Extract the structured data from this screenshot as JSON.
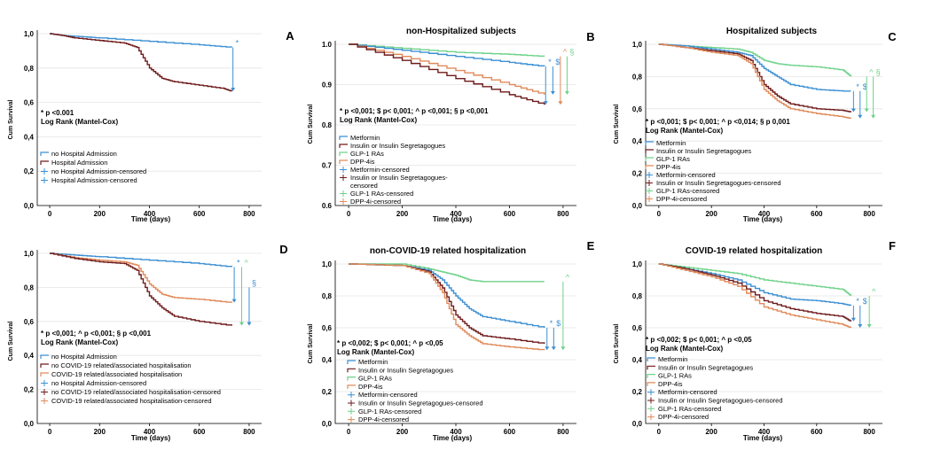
{
  "colors": {
    "blue": "#3b8fd3",
    "darkred": "#6e1a1a",
    "green": "#6fd28a",
    "orange": "#e08a5a"
  },
  "panels": [
    {
      "letter": "A",
      "title": "",
      "ylabel": "Cum Survival",
      "xlabel": "Time (days)",
      "yticks": [
        "0,0",
        "0,2",
        "0,4",
        "0,6",
        "0,8",
        "1,0"
      ],
      "xticks": [
        "0",
        "200",
        "400",
        "600",
        "800"
      ],
      "ylim": [
        0,
        1
      ],
      "xlim": [
        -50,
        850
      ],
      "stat1": "* p <0.001",
      "stat2": "Log Rank (Mantel-Cox)",
      "legend": [
        {
          "label": "no Hospital Admission",
          "color": "#3b8fd3",
          "type": "line"
        },
        {
          "label": "Hospital Admission",
          "color": "#6e1a1a",
          "type": "line"
        },
        {
          "label": "no Hospital Admission-censored",
          "color": "#3b8fd3",
          "type": "censor"
        },
        {
          "label": "Hospital Admission-censored",
          "color": "#3b8fd3",
          "type": "censor"
        }
      ],
      "series": [
        {
          "color": "#3b8fd3",
          "x": [
            0,
            50,
            100,
            200,
            400,
            600,
            730
          ],
          "y": [
            1,
            0.99,
            0.985,
            0.975,
            0.955,
            0.935,
            0.92
          ]
        },
        {
          "color": "#6e1a1a",
          "x": [
            0,
            50,
            100,
            200,
            300,
            350,
            400,
            450,
            500,
            600,
            700,
            730
          ],
          "y": [
            1,
            0.99,
            0.975,
            0.96,
            0.945,
            0.92,
            0.8,
            0.74,
            0.72,
            0.7,
            0.68,
            0.665
          ]
        }
      ],
      "markers": [
        {
          "sym": "*",
          "color": "#3b8fd3",
          "x": 735,
          "y1": 0.92,
          "y2": 0.665
        }
      ]
    },
    {
      "letter": "B",
      "title": "non-Hospitalized subjects",
      "ylabel": "Cum Survival",
      "xlabel": "Time (days)",
      "yticks": [
        "0.6",
        "0.7",
        "0.8",
        "0.9",
        "1.0"
      ],
      "xticks": [
        "0",
        "200",
        "400",
        "600",
        "800"
      ],
      "ylim": [
        0.6,
        1
      ],
      "xlim": [
        -50,
        850
      ],
      "stat1": "* p <0,001; $ p< 0,001; ^ p <0,001; § p <0,001",
      "stat2": "Log Rank (Mantel-Cox)",
      "legend": [
        {
          "label": "Metformin",
          "color": "#3b8fd3",
          "type": "line"
        },
        {
          "label": "Insulin or Insulin Segretagogues",
          "color": "#6e1a1a",
          "type": "line"
        },
        {
          "label": "GLP-1 RAs",
          "color": "#6fd28a",
          "type": "line"
        },
        {
          "label": "DPP-4is",
          "color": "#e08a5a",
          "type": "line"
        },
        {
          "label": "Metformin-censored",
          "color": "#3b8fd3",
          "type": "censor"
        },
        {
          "label": "Insulin or Insulin Segretagogues-",
          "color": "#6e1a1a",
          "type": "censor"
        },
        {
          "label": "censored",
          "color": "#6e1a1a",
          "type": "none"
        },
        {
          "label": "GLP-1 RAs-censored",
          "color": "#6fd28a",
          "type": "censor"
        },
        {
          "label": "DPP-4i-censored",
          "color": "#e08a5a",
          "type": "censor"
        }
      ],
      "series": [
        {
          "color": "#6fd28a",
          "x": [
            0,
            200,
            400,
            600,
            730
          ],
          "y": [
            1,
            0.99,
            0.98,
            0.975,
            0.97
          ]
        },
        {
          "color": "#3b8fd3",
          "x": [
            0,
            200,
            400,
            600,
            730
          ],
          "y": [
            1,
            0.985,
            0.97,
            0.955,
            0.945
          ]
        },
        {
          "color": "#e08a5a",
          "x": [
            0,
            200,
            400,
            600,
            730
          ],
          "y": [
            1,
            0.97,
            0.935,
            0.9,
            0.875
          ]
        },
        {
          "color": "#6e1a1a",
          "x": [
            0,
            200,
            400,
            600,
            730
          ],
          "y": [
            1,
            0.96,
            0.915,
            0.875,
            0.85
          ]
        }
      ],
      "markers": [
        {
          "sym": "*",
          "color": "#3b8fd3",
          "x": 735,
          "y1": 0.945,
          "y2": 0.85
        },
        {
          "sym": "$",
          "color": "#3b8fd3",
          "x": 762,
          "y1": 0.945,
          "y2": 0.875
        },
        {
          "sym": "^",
          "color": "#e08a5a",
          "x": 790,
          "y1": 0.97,
          "y2": 0.85
        },
        {
          "sym": "§",
          "color": "#6fd28a",
          "x": 815,
          "y1": 0.97,
          "y2": 0.875
        }
      ]
    },
    {
      "letter": "C",
      "title": "Hospitalized subjects",
      "ylabel": "Cum Survival",
      "xlabel": "Time (days)",
      "yticks": [
        "0,0",
        "0,2",
        "0,4",
        "0,6",
        "0,8",
        "1,0"
      ],
      "xticks": [
        "0",
        "200",
        "400",
        "600",
        "800"
      ],
      "ylim": [
        0,
        1
      ],
      "xlim": [
        -50,
        850
      ],
      "stat1": "* p <0,001; $ p< 0,001; ^ p <0,014; § p 0,001",
      "stat2": "Log Rank (Mantel-Cox)",
      "legend": [
        {
          "label": "Metformin",
          "color": "#3b8fd3",
          "type": "line"
        },
        {
          "label": "Insulin or Insulin Segretagogues",
          "color": "#6e1a1a",
          "type": "line"
        },
        {
          "label": "GLP-1 RAs",
          "color": "#6fd28a",
          "type": "line"
        },
        {
          "label": "DPP-4is",
          "color": "#e08a5a",
          "type": "line"
        },
        {
          "label": "Metformin-censored",
          "color": "#3b8fd3",
          "type": "censor"
        },
        {
          "label": "Insulin or Insulin Segretagogues-censored",
          "color": "#6e1a1a",
          "type": "censor"
        },
        {
          "label": "GLP-1 RAs-censored",
          "color": "#6fd28a",
          "type": "censor"
        },
        {
          "label": "DPP-4i-censored",
          "color": "#e08a5a",
          "type": "censor"
        }
      ],
      "series": [
        {
          "color": "#6fd28a",
          "x": [
            0,
            100,
            200,
            300,
            350,
            400,
            450,
            500,
            600,
            700,
            730
          ],
          "y": [
            1,
            0.99,
            0.98,
            0.97,
            0.95,
            0.9,
            0.88,
            0.87,
            0.86,
            0.84,
            0.8
          ]
        },
        {
          "color": "#3b8fd3",
          "x": [
            0,
            100,
            200,
            300,
            350,
            400,
            450,
            500,
            600,
            700,
            730
          ],
          "y": [
            1,
            0.99,
            0.97,
            0.95,
            0.93,
            0.85,
            0.8,
            0.75,
            0.72,
            0.71,
            0.71
          ]
        },
        {
          "color": "#6e1a1a",
          "x": [
            0,
            100,
            200,
            300,
            350,
            400,
            450,
            500,
            600,
            700,
            730
          ],
          "y": [
            1,
            0.98,
            0.96,
            0.94,
            0.9,
            0.75,
            0.68,
            0.63,
            0.6,
            0.59,
            0.58
          ]
        },
        {
          "color": "#e08a5a",
          "x": [
            0,
            100,
            200,
            300,
            350,
            400,
            450,
            500,
            600,
            700,
            730
          ],
          "y": [
            1,
            0.98,
            0.95,
            0.93,
            0.88,
            0.72,
            0.65,
            0.6,
            0.57,
            0.55,
            0.54
          ]
        }
      ],
      "markers": [
        {
          "sym": "*",
          "color": "#3b8fd3",
          "x": 740,
          "y1": 0.71,
          "y2": 0.58
        },
        {
          "sym": "$",
          "color": "#3b8fd3",
          "x": 765,
          "y1": 0.71,
          "y2": 0.54
        },
        {
          "sym": "^",
          "color": "#6fd28a",
          "x": 790,
          "y1": 0.8,
          "y2": 0.58
        },
        {
          "sym": "§",
          "color": "#6fd28a",
          "x": 815,
          "y1": 0.8,
          "y2": 0.54
        }
      ]
    },
    {
      "letter": "D",
      "title": "",
      "ylabel": "Cum Survival",
      "xlabel": "Time (days)",
      "yticks": [
        "0,0",
        "0,2",
        "0,4",
        "0,6",
        "0,8",
        "1,0"
      ],
      "xticks": [
        "0",
        "200",
        "400",
        "600",
        "800"
      ],
      "ylim": [
        0,
        1
      ],
      "xlim": [
        -50,
        850
      ],
      "stat1": "* p <0,001; ^ p <0,001; § p <0,001",
      "stat2": "Log Rank (Mantel-Cox)",
      "legend": [
        {
          "label": "no Hospital Admission",
          "color": "#3b8fd3",
          "type": "line"
        },
        {
          "label": "no COVID-19 related/associated hospitalisation",
          "color": "#6e1a1a",
          "type": "line"
        },
        {
          "label": "COVID-19 related/associated hospitalisation",
          "color": "#e08a5a",
          "type": "line"
        },
        {
          "label": "no Hospital Admission-censored",
          "color": "#3b8fd3",
          "type": "censor"
        },
        {
          "label": "no COVID-19 related/associated hospitalisation-censored",
          "color": "#6e1a1a",
          "type": "censor"
        },
        {
          "label": "COVID-19 related/associated hospitalisation-censored",
          "color": "#e08a5a",
          "type": "censor"
        }
      ],
      "series": [
        {
          "color": "#3b8fd3",
          "x": [
            0,
            100,
            200,
            400,
            600,
            730
          ],
          "y": [
            1,
            0.99,
            0.98,
            0.96,
            0.94,
            0.92
          ]
        },
        {
          "color": "#e08a5a",
          "x": [
            0,
            100,
            200,
            300,
            350,
            400,
            450,
            500,
            600,
            730
          ],
          "y": [
            1,
            0.975,
            0.96,
            0.95,
            0.93,
            0.82,
            0.76,
            0.74,
            0.73,
            0.71
          ]
        },
        {
          "color": "#6e1a1a",
          "x": [
            0,
            100,
            200,
            300,
            350,
            400,
            450,
            500,
            600,
            730
          ],
          "y": [
            1,
            0.97,
            0.95,
            0.94,
            0.9,
            0.75,
            0.68,
            0.63,
            0.6,
            0.575
          ]
        }
      ],
      "markers": [
        {
          "sym": "*",
          "color": "#3b8fd3",
          "x": 740,
          "y1": 0.92,
          "y2": 0.71
        },
        {
          "sym": "^",
          "color": "#6fd28a",
          "x": 770,
          "y1": 0.92,
          "y2": 0.575
        },
        {
          "sym": "§",
          "color": "#3b8fd3",
          "x": 800,
          "y1": 0.8,
          "y2": 0.575
        }
      ]
    },
    {
      "letter": "E",
      "title": "non-COVID-19 related hospitalization",
      "ylabel": "Cum Survival",
      "xlabel": "Time (days)",
      "yticks": [
        "0,0",
        "0,2",
        "0,4",
        "0,6",
        "0,8",
        "1,0"
      ],
      "xticks": [
        "0",
        "200",
        "400",
        "600",
        "800"
      ],
      "ylim": [
        0,
        1
      ],
      "xlim": [
        -50,
        850
      ],
      "stat1": "* p <0,002; $ p< 0,001; ^ p <0,05",
      "stat2": "Log Rank (Mantel-Cox)",
      "legend": [
        {
          "label": "Metformin",
          "color": "#3b8fd3",
          "type": "line"
        },
        {
          "label": "Insulin or Insulin Segretagogues",
          "color": "#6e1a1a",
          "type": "line"
        },
        {
          "label": "GLP-1 RAs",
          "color": "#6fd28a",
          "type": "line"
        },
        {
          "label": "DPP-4is",
          "color": "#e08a5a",
          "type": "line"
        },
        {
          "label": "Metformin-censored",
          "color": "#3b8fd3",
          "type": "censor"
        },
        {
          "label": "Insulin or Insulin Segretagogues-censored",
          "color": "#6e1a1a",
          "type": "censor"
        },
        {
          "label": "GLP-1 RAs-censored",
          "color": "#6fd28a",
          "type": "censor"
        },
        {
          "label": "DPP-4i-censored",
          "color": "#e08a5a",
          "type": "censor"
        }
      ],
      "series": [
        {
          "color": "#6fd28a",
          "x": [
            0,
            200,
            300,
            350,
            400,
            450,
            500,
            730
          ],
          "y": [
            1,
            1,
            0.97,
            0.95,
            0.93,
            0.9,
            0.89,
            0.89
          ]
        },
        {
          "color": "#3b8fd3",
          "x": [
            0,
            200,
            300,
            350,
            400,
            450,
            500,
            600,
            730
          ],
          "y": [
            1,
            0.99,
            0.96,
            0.9,
            0.8,
            0.72,
            0.67,
            0.64,
            0.6
          ]
        },
        {
          "color": "#6e1a1a",
          "x": [
            0,
            200,
            300,
            350,
            400,
            450,
            500,
            600,
            730
          ],
          "y": [
            1,
            0.99,
            0.95,
            0.85,
            0.68,
            0.6,
            0.55,
            0.53,
            0.5
          ]
        },
        {
          "color": "#e08a5a",
          "x": [
            0,
            200,
            300,
            350,
            400,
            450,
            500,
            600,
            730
          ],
          "y": [
            1,
            0.99,
            0.94,
            0.82,
            0.62,
            0.55,
            0.5,
            0.48,
            0.46
          ]
        }
      ],
      "markers": [
        {
          "sym": "*",
          "color": "#3b8fd3",
          "x": 740,
          "y1": 0.6,
          "y2": 0.46
        },
        {
          "sym": "$",
          "color": "#3b8fd3",
          "x": 765,
          "y1": 0.6,
          "y2": 0.46
        },
        {
          "sym": "^",
          "color": "#6fd28a",
          "x": 800,
          "y1": 0.89,
          "y2": 0.46
        }
      ]
    },
    {
      "letter": "F",
      "title": "COVID-19 related hospitalization",
      "ylabel": "Cum Survival",
      "xlabel": "Time (days)",
      "yticks": [
        "0,0",
        "0,2",
        "0,4",
        "0,6",
        "0,8",
        "1,0"
      ],
      "xticks": [
        "0",
        "200",
        "400",
        "600",
        "800"
      ],
      "ylim": [
        0,
        1
      ],
      "xlim": [
        -50,
        850
      ],
      "stat1": "* p <0,002; $ p< 0,001; ^ p <0,05",
      "stat2": "Log Rank (Mantel-Cox)",
      "legend": [
        {
          "label": "Metformin",
          "color": "#3b8fd3",
          "type": "line"
        },
        {
          "label": "Insulin or Insulin Segretagogues",
          "color": "#6e1a1a",
          "type": "line"
        },
        {
          "label": "GLP-1 RAs",
          "color": "#6fd28a",
          "type": "line"
        },
        {
          "label": "DPP-4is",
          "color": "#e08a5a",
          "type": "line"
        },
        {
          "label": "Metformin-censored",
          "color": "#3b8fd3",
          "type": "censor"
        },
        {
          "label": "Insulin or Insulin Segretagogues-censored",
          "color": "#6e1a1a",
          "type": "censor"
        },
        {
          "label": "GLP-1 RAs-censored",
          "color": "#6fd28a",
          "type": "censor"
        },
        {
          "label": "DPP-4i-censored",
          "color": "#e08a5a",
          "type": "censor"
        }
      ],
      "series": [
        {
          "color": "#6fd28a",
          "x": [
            0,
            100,
            200,
            300,
            400,
            500,
            600,
            700,
            730
          ],
          "y": [
            1,
            0.98,
            0.96,
            0.94,
            0.9,
            0.88,
            0.86,
            0.84,
            0.8
          ]
        },
        {
          "color": "#3b8fd3",
          "x": [
            0,
            100,
            200,
            300,
            400,
            500,
            600,
            700,
            730
          ],
          "y": [
            1,
            0.97,
            0.94,
            0.9,
            0.82,
            0.78,
            0.77,
            0.75,
            0.74
          ]
        },
        {
          "color": "#6e1a1a",
          "x": [
            0,
            100,
            200,
            300,
            400,
            500,
            600,
            700,
            730
          ],
          "y": [
            1,
            0.97,
            0.93,
            0.88,
            0.77,
            0.72,
            0.69,
            0.67,
            0.64
          ]
        },
        {
          "color": "#e08a5a",
          "x": [
            0,
            100,
            200,
            300,
            400,
            500,
            600,
            700,
            730
          ],
          "y": [
            1,
            0.96,
            0.92,
            0.86,
            0.73,
            0.68,
            0.65,
            0.62,
            0.6
          ]
        }
      ],
      "markers": [
        {
          "sym": "*",
          "color": "#3b8fd3",
          "x": 740,
          "y1": 0.74,
          "y2": 0.64
        },
        {
          "sym": "$",
          "color": "#3b8fd3",
          "x": 765,
          "y1": 0.74,
          "y2": 0.6
        },
        {
          "sym": "^",
          "color": "#6fd28a",
          "x": 800,
          "y1": 0.8,
          "y2": 0.6
        }
      ]
    }
  ]
}
